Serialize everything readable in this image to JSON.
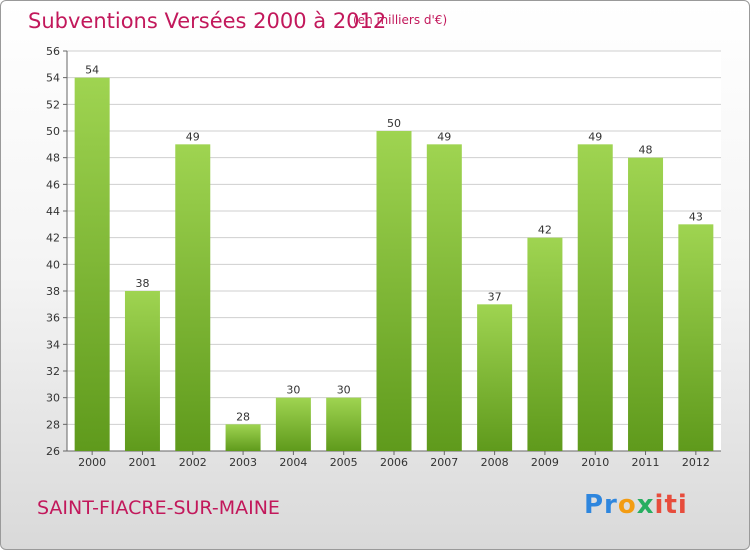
{
  "header": {
    "title": "Subventions Versées 2000 à 2012",
    "unit_note": "(en milliers d'€)"
  },
  "footer": {
    "commune": "SAINT-FIACRE-SUR-MAINE",
    "logo_parts": [
      "Pr",
      "o",
      "x",
      "iti"
    ]
  },
  "colors": {
    "bar_top": "#9fd451",
    "bar_bottom": "#5f9a1c",
    "title": "#c2185b",
    "grid": "#cfcfcf"
  },
  "chart_data": {
    "type": "bar",
    "title": "Subventions Versées 2000 à 2012",
    "subtitle": "(en milliers d'€)",
    "xlabel": "",
    "ylabel": "",
    "categories": [
      "2000",
      "2001",
      "2002",
      "2003",
      "2004",
      "2005",
      "2006",
      "2007",
      "2008",
      "2009",
      "2010",
      "2011",
      "2012"
    ],
    "values": [
      54,
      38,
      49,
      28,
      30,
      30,
      50,
      49,
      37,
      42,
      49,
      48,
      43
    ],
    "ylim": [
      26,
      56
    ],
    "yticks": [
      26,
      28,
      30,
      32,
      34,
      36,
      38,
      40,
      42,
      44,
      46,
      48,
      50,
      52,
      54,
      56
    ],
    "grid": true,
    "legend": "none"
  }
}
